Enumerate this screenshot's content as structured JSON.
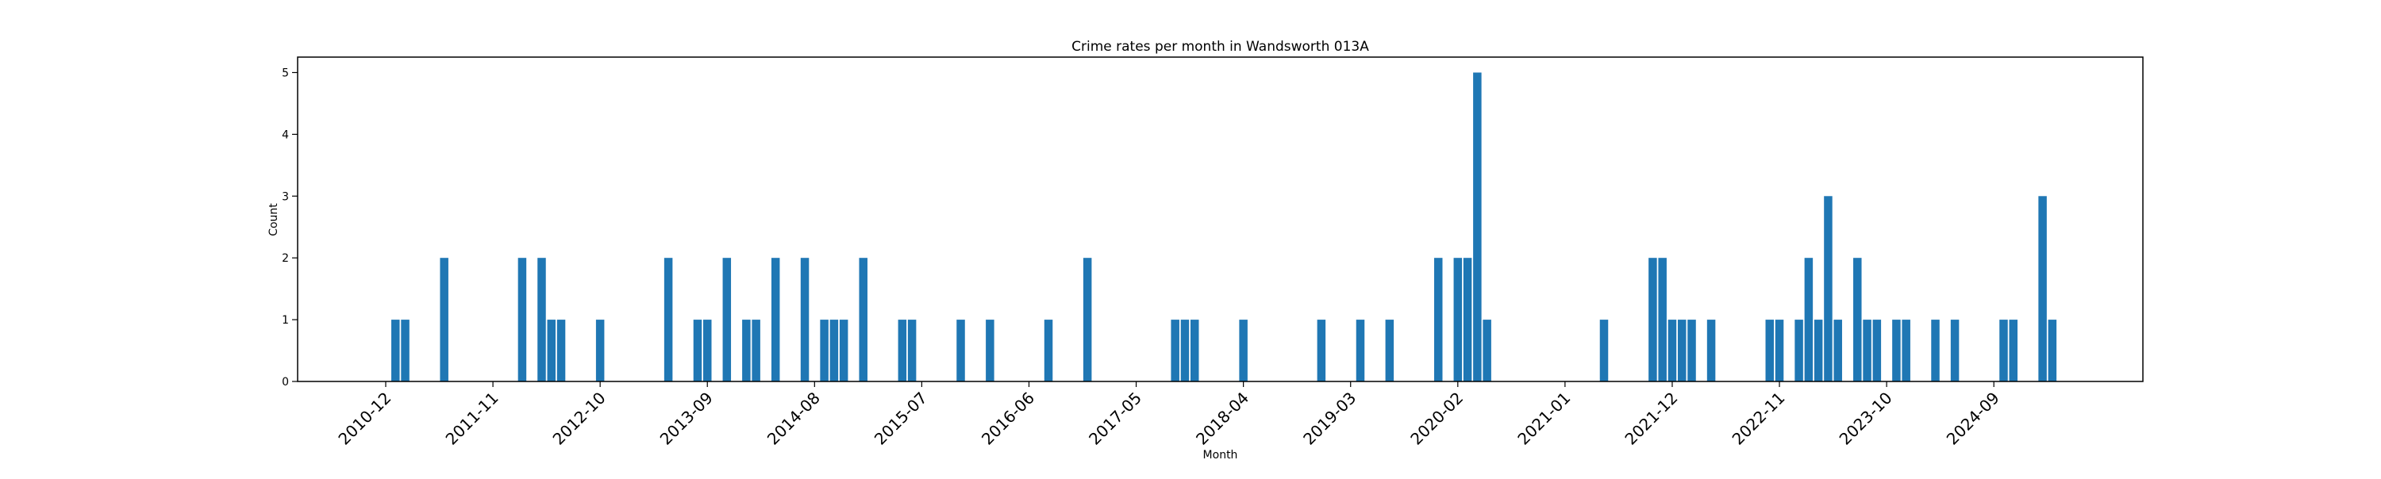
{
  "chart_data": {
    "type": "bar",
    "title": "Crime rates per month in Wandsworth 013A",
    "xlabel": "Month",
    "ylabel": "Count",
    "ylim": [
      0,
      5.25
    ],
    "yticks": [
      0,
      1,
      2,
      3,
      4,
      5
    ],
    "xticks": [
      "2010-12",
      "2011-11",
      "2012-10",
      "2013-09",
      "2014-08",
      "2015-07",
      "2016-06",
      "2017-05",
      "2018-04",
      "2019-03",
      "2020-02",
      "2021-01",
      "2021-12",
      "2022-11",
      "2023-10",
      "2024-09"
    ],
    "grid": false,
    "bar_color": "#1f77b4",
    "categories": [
      "2011-01",
      "2011-02",
      "2011-06",
      "2012-02",
      "2012-04",
      "2012-05",
      "2012-06",
      "2012-10",
      "2013-05",
      "2013-08",
      "2013-09",
      "2013-11",
      "2014-01",
      "2014-02",
      "2014-04",
      "2014-07",
      "2014-09",
      "2014-10",
      "2014-11",
      "2015-01",
      "2015-05",
      "2015-06",
      "2015-11",
      "2016-02",
      "2016-08",
      "2016-12",
      "2017-09",
      "2017-10",
      "2017-11",
      "2018-04",
      "2018-12",
      "2019-04",
      "2019-07",
      "2019-12",
      "2020-02",
      "2020-03",
      "2020-04",
      "2020-05",
      "2021-05",
      "2021-10",
      "2021-11",
      "2021-12",
      "2022-01",
      "2022-02",
      "2022-04",
      "2022-10",
      "2022-11",
      "2023-01",
      "2023-02",
      "2023-03",
      "2023-04",
      "2023-05",
      "2023-07",
      "2023-08",
      "2023-09",
      "2023-11",
      "2023-12",
      "2024-03",
      "2024-05",
      "2024-10",
      "2024-11",
      "2025-02",
      "2025-03"
    ],
    "values": [
      1,
      1,
      2,
      2,
      2,
      1,
      1,
      1,
      2,
      1,
      1,
      2,
      1,
      1,
      2,
      2,
      1,
      1,
      1,
      2,
      1,
      1,
      1,
      1,
      1,
      2,
      1,
      1,
      1,
      1,
      1,
      1,
      1,
      2,
      2,
      2,
      5,
      1,
      1,
      2,
      2,
      1,
      1,
      1,
      1,
      1,
      1,
      1,
      2,
      1,
      3,
      1,
      2,
      1,
      1,
      1,
      1,
      1,
      1,
      1,
      1,
      3,
      1
    ]
  }
}
